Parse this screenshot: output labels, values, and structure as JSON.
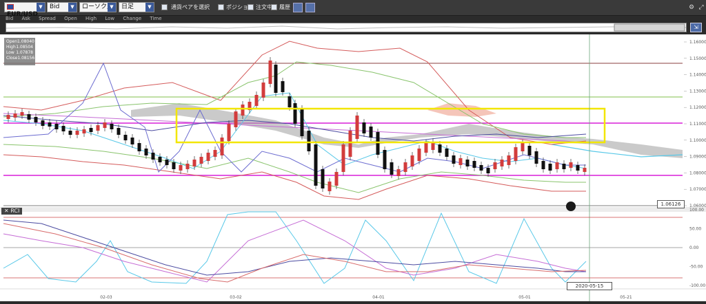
{
  "toolbar": {
    "pair": "EUR/USD",
    "price_type": "Bid",
    "chart_type": "ローソク足",
    "timeframe": "日足",
    "watchlist_label": "通貨ペアを選択",
    "position_label": "ポジション",
    "orders_label": "注文中",
    "history_label": "履歴"
  },
  "legend": [
    "Bid",
    "Ask",
    "Spread",
    "Open",
    "High",
    "Low",
    "Change",
    "Time"
  ],
  "info": {
    "open_label": "Open",
    "open": "1.08040",
    "high_label": "High",
    "high": "1.08504",
    "low_label": "Low",
    "low": "1.07878",
    "close_label": "Close",
    "close": "1.08156"
  },
  "current_price": "1.06126",
  "cursor_date": "2020-05-15",
  "rci_label": "RCI",
  "price_axis": [
    "1.16000",
    "1.15000",
    "1.14000",
    "1.13000",
    "1.12000",
    "1.11000",
    "1.10000",
    "1.09000",
    "1.08000",
    "1.07000",
    "1.06000"
  ],
  "rci_axis": [
    "100.00",
    "50.00",
    "0.00",
    "-50.00",
    "-100.00"
  ],
  "date_axis": [
    "02-03",
    "03-02",
    "04-01",
    "05-01",
    "05-21"
  ],
  "colors": {
    "highlight": "#f2e600",
    "magenta": "#d81fd8",
    "cloud": "#9e9e9e",
    "up": "#d23c3c",
    "down": "#111111"
  }
}
